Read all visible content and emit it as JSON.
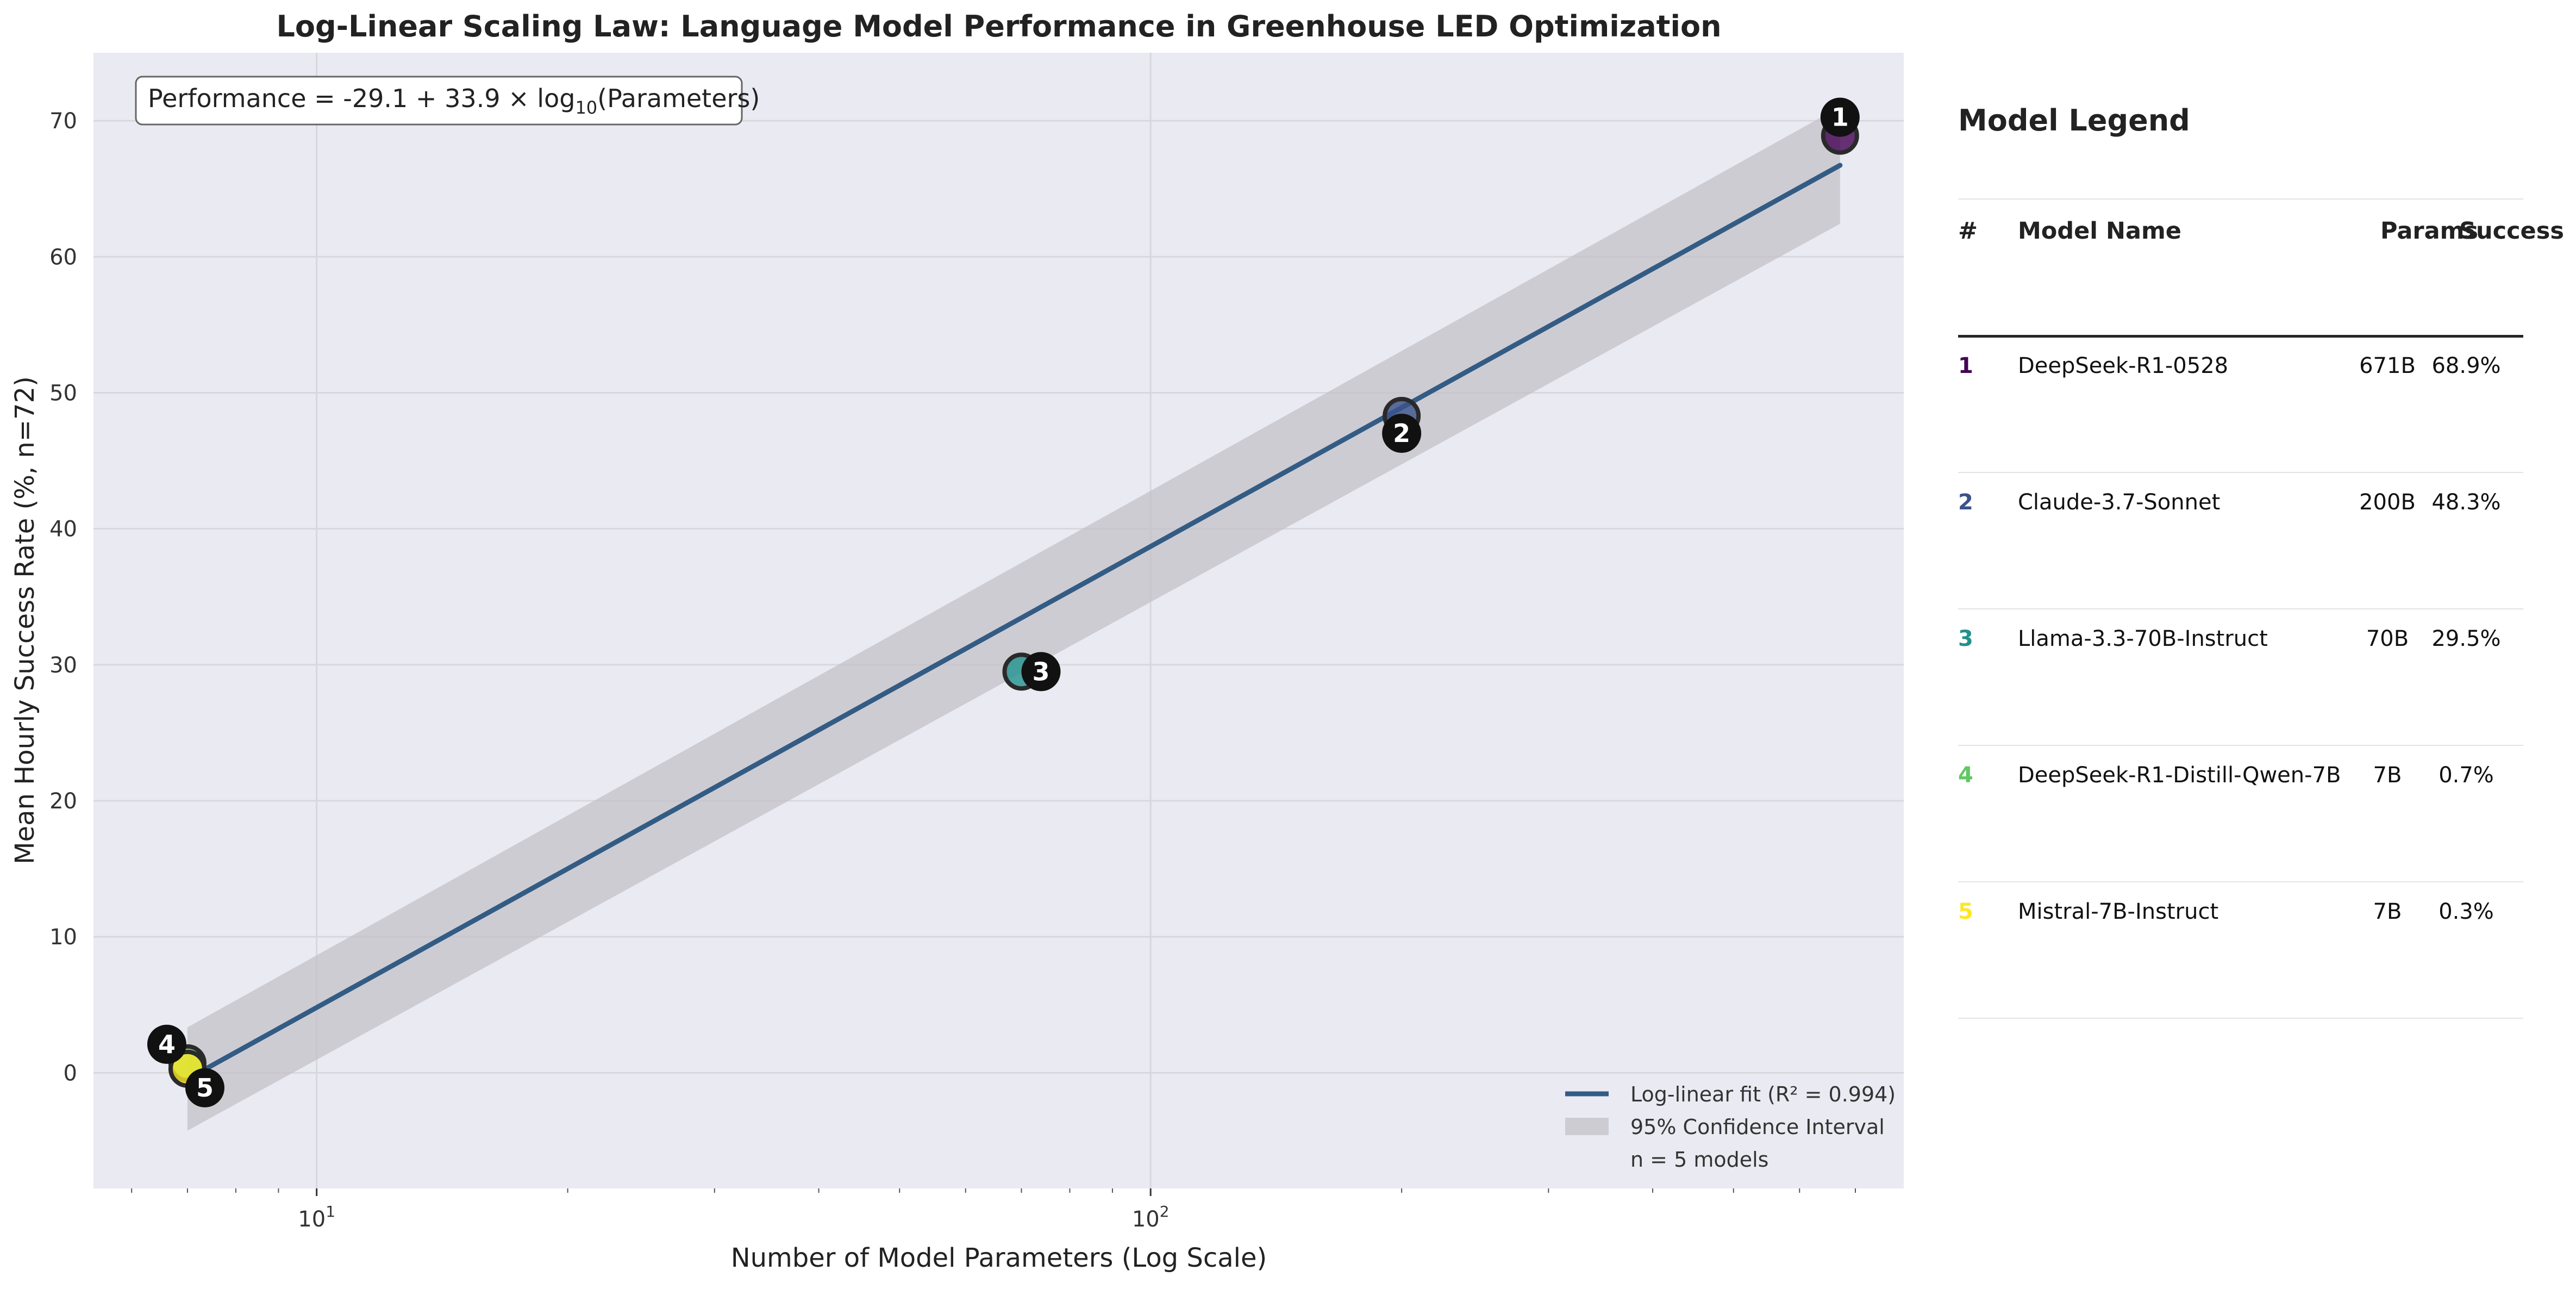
{
  "chart_data": {
    "type": "scatter",
    "title": "Log-Linear Scaling Law: Language Model Performance in Greenhouse LED Optimization",
    "xlabel": "Number of Model Parameters (Log Scale)",
    "ylabel": "Mean Hourly Success Rate (%, n=72)",
    "x_scale": "log",
    "xlim": [
      5.4,
      800
    ],
    "ylim": [
      -8.5,
      75
    ],
    "x_tick_labels": [
      {
        "base": "10",
        "exp": "1",
        "value": 10
      },
      {
        "base": "10",
        "exp": "2",
        "value": 100
      }
    ],
    "y_ticks": [
      0,
      10,
      20,
      30,
      40,
      50,
      60,
      70
    ],
    "grid": true,
    "equation": {
      "prefix": "Performance = -29.1 + 33.9 × log",
      "sub": "10",
      "suffix": "(Parameters)"
    },
    "fit": {
      "intercept": -29.1,
      "slope": 33.9,
      "x_range": [
        7,
        671
      ],
      "ci_halfwidth": [
        3.8,
        4.3
      ]
    },
    "points": [
      {
        "id": "1",
        "x": 671,
        "y": 68.9,
        "color": "#440154"
      },
      {
        "id": "2",
        "x": 200,
        "y": 48.3,
        "color": "#3b528b"
      },
      {
        "id": "3",
        "x": 70,
        "y": 29.5,
        "color": "#21918c"
      },
      {
        "id": "4",
        "x": 7,
        "y": 0.7,
        "color": "#5ec962"
      },
      {
        "id": "5",
        "x": 7,
        "y": 0.3,
        "color": "#fde725"
      }
    ],
    "legend": {
      "position": "bottom-right",
      "fit_label": "Log-linear fit (R² = 0.994)",
      "ci_label": "95% Confidence Interval",
      "n_label": "n = 5 models"
    }
  },
  "colors": {
    "plot_bg": "#eaeaf2",
    "grid": "#d8d8dc",
    "fit_line": "#335c85",
    "ci_band": "#c4c2c8",
    "marker_label_bg": "#111111"
  },
  "model_legend": {
    "title": "Model Legend",
    "headers": {
      "num": "#",
      "name": "Model Name",
      "params": "Params",
      "success": "Success"
    },
    "rows": [
      {
        "num": "1",
        "name": "DeepSeek-R1-0528",
        "params": "671B",
        "success": "68.9%",
        "color": "#440154"
      },
      {
        "num": "2",
        "name": "Claude-3.7-Sonnet",
        "params": "200B",
        "success": "48.3%",
        "color": "#3b528b"
      },
      {
        "num": "3",
        "name": "Llama-3.3-70B-Instruct",
        "params": "70B",
        "success": "29.5%",
        "color": "#21918c"
      },
      {
        "num": "4",
        "name": "DeepSeek-R1-Distill-Qwen-7B",
        "params": "7B",
        "success": "0.7%",
        "color": "#5ec962"
      },
      {
        "num": "5",
        "name": "Mistral-7B-Instruct",
        "params": "7B",
        "success": "0.3%",
        "color": "#fde725"
      }
    ]
  }
}
